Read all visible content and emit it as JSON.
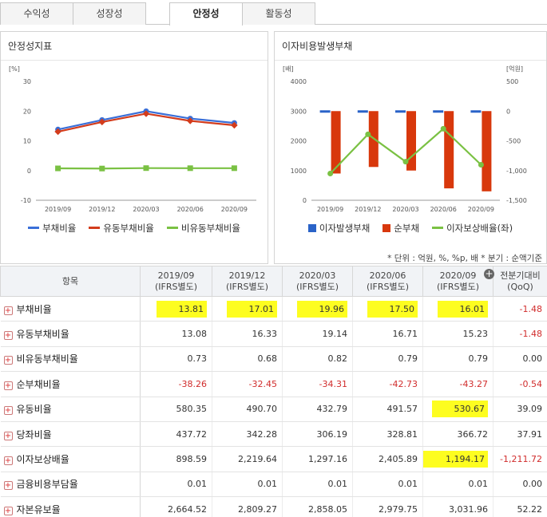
{
  "tabs": [
    {
      "label": "수익성",
      "active": false
    },
    {
      "label": "성장성",
      "active": false
    },
    {
      "label": "안정성",
      "active": true
    },
    {
      "label": "활동성",
      "active": false
    }
  ],
  "panels": {
    "left_title": "안정성지표",
    "right_title": "이자비용발생부채"
  },
  "chart_data": [
    {
      "type": "line",
      "title": "안정성지표",
      "yunit": "[%]",
      "categories": [
        "2019/09",
        "2019/12",
        "2020/03",
        "2020/06",
        "2020/09"
      ],
      "ylim": [
        -10,
        30
      ],
      "yticks": [
        "30",
        "20",
        "10",
        "0",
        "-10"
      ],
      "series": [
        {
          "name": "부채비율",
          "values": [
            13.81,
            17.01,
            19.96,
            17.5,
            16.01
          ],
          "color": "#3a6fd8"
        },
        {
          "name": "유동부채비율",
          "values": [
            13.08,
            16.33,
            19.14,
            16.71,
            15.23
          ],
          "color": "#d33c1c"
        },
        {
          "name": "비유동부채비율",
          "values": [
            0.73,
            0.68,
            0.82,
            0.79,
            0.79
          ],
          "color": "#7ac143"
        }
      ],
      "legend": "bottom"
    },
    {
      "type": "bar",
      "title": "이자비용발생부채",
      "yunit_left": "[배]",
      "yunit_right": "[억원]",
      "categories": [
        "2019/09",
        "2019/12",
        "2020/03",
        "2020/06",
        "2020/09"
      ],
      "ylim_left": [
        0,
        4000
      ],
      "yticks_left": [
        "4000",
        "3000",
        "2000",
        "1000",
        "0"
      ],
      "ylim_right": [
        -1500,
        500
      ],
      "yticks_right": [
        "500",
        "0",
        "-500",
        "-1,000",
        "-1,500"
      ],
      "series": [
        {
          "name": "이자발생부채",
          "axis": "right",
          "values": [
            -10,
            -10,
            -10,
            -10,
            -10
          ],
          "color": "#2a63c8"
        },
        {
          "name": "순부채",
          "axis": "right",
          "values": [
            -1050,
            -940,
            -1000,
            -1300,
            -1350
          ],
          "color": "#d8380c"
        },
        {
          "name": "이자보상배율(좌)",
          "axis": "left",
          "values": [
            898.59,
            2219.64,
            1297.16,
            2405.89,
            1194.17
          ],
          "color": "#7ac143"
        }
      ],
      "legend": "bottom"
    }
  ],
  "info": "* 단위 : 억원, %, %p, 배    * 분기 : 순액기준",
  "table": {
    "headers": [
      "항목",
      "2019/09\n(IFRS별도)",
      "2019/12\n(IFRS별도)",
      "2020/03\n(IFRS별도)",
      "2020/06\n(IFRS별도)",
      "2020/09\n(IFRS별도)",
      "전분기대비\n(QoQ)"
    ],
    "rows": [
      {
        "label": "부채비율",
        "values": [
          "13.81",
          "17.01",
          "19.96",
          "17.50",
          "16.01"
        ],
        "qoq": "-1.48"
      },
      {
        "label": "유동부채비율",
        "values": [
          "13.08",
          "16.33",
          "19.14",
          "16.71",
          "15.23"
        ],
        "qoq": "-1.48"
      },
      {
        "label": "비유동부채비율",
        "values": [
          "0.73",
          "0.68",
          "0.82",
          "0.79",
          "0.79"
        ],
        "qoq": "0.00"
      },
      {
        "label": "순부채비율",
        "values": [
          "-38.26",
          "-32.45",
          "-34.31",
          "-42.73",
          "-43.27"
        ],
        "qoq": "-0.54"
      },
      {
        "label": "유동비율",
        "values": [
          "580.35",
          "490.70",
          "432.79",
          "491.57",
          "530.67"
        ],
        "qoq": "39.09"
      },
      {
        "label": "당좌비율",
        "values": [
          "437.72",
          "342.28",
          "306.19",
          "328.81",
          "366.72"
        ],
        "qoq": "37.91"
      },
      {
        "label": "이자보상배율",
        "values": [
          "898.59",
          "2,219.64",
          "1,297.16",
          "2,405.89",
          "1,194.17"
        ],
        "qoq": "-1,211.72"
      },
      {
        "label": "금융비용부담율",
        "values": [
          "0.01",
          "0.01",
          "0.01",
          "0.01",
          "0.01"
        ],
        "qoq": "0.00"
      },
      {
        "label": "자본유보율",
        "values": [
          "2,664.52",
          "2,809.27",
          "2,858.05",
          "2,979.75",
          "3,031.96"
        ],
        "qoq": "52.22"
      }
    ],
    "highlights": [
      [
        0,
        0
      ],
      [
        0,
        1
      ],
      [
        0,
        2
      ],
      [
        0,
        3
      ],
      [
        0,
        4
      ],
      [
        4,
        4
      ],
      [
        6,
        4
      ]
    ]
  }
}
